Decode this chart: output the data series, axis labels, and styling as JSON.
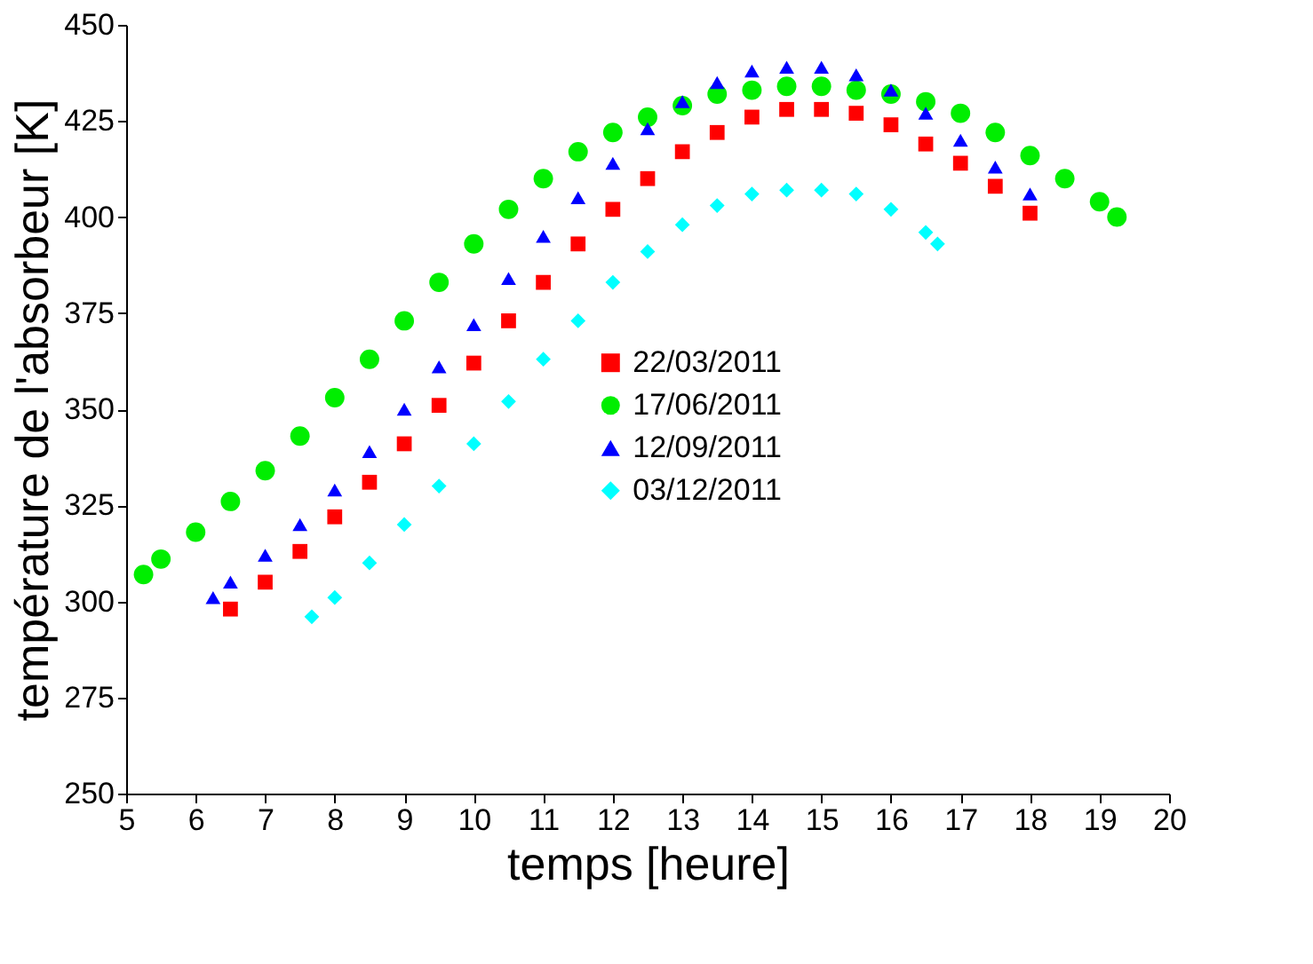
{
  "chart_data": {
    "type": "scatter",
    "xlabel": "temps [heure]",
    "ylabel": "température de l'absorbeur [K]",
    "xlim": [
      5,
      20
    ],
    "ylim": [
      250,
      450
    ],
    "xticks": [
      5,
      6,
      7,
      8,
      9,
      10,
      11,
      12,
      13,
      14,
      15,
      16,
      17,
      18,
      19,
      20
    ],
    "yticks": [
      250,
      275,
      300,
      325,
      350,
      375,
      400,
      425,
      450
    ],
    "grid": false,
    "legend": "right",
    "series": [
      {
        "name": "22/03/2011",
        "color": "#ff0000",
        "marker": "square",
        "x": [
          6.5,
          7,
          7.5,
          8,
          8.5,
          9,
          9.5,
          10,
          10.5,
          11,
          11.5,
          12,
          12.5,
          13,
          13.5,
          14,
          14.5,
          15,
          15.5,
          16,
          16.5,
          17,
          17.5,
          18
        ],
        "values": [
          298,
          305,
          313,
          322,
          331,
          341,
          351,
          362,
          373,
          383,
          393,
          402,
          410,
          417,
          422,
          426,
          428,
          428,
          427,
          424,
          419,
          414,
          408,
          401
        ]
      },
      {
        "name": "17/06/2011",
        "color": "#00ee00",
        "marker": "circle",
        "x": [
          5.25,
          5.5,
          6,
          6.5,
          7,
          7.5,
          8,
          8.5,
          9,
          9.5,
          10,
          10.5,
          11,
          11.5,
          12,
          12.5,
          13,
          13.5,
          14,
          14.5,
          15,
          15.5,
          16,
          16.5,
          17,
          17.5,
          18,
          18.5,
          19,
          19.25
        ],
        "values": [
          307,
          311,
          318,
          326,
          334,
          343,
          353,
          363,
          373,
          383,
          393,
          402,
          410,
          417,
          422,
          426,
          429,
          432,
          433,
          434,
          434,
          433,
          432,
          430,
          427,
          422,
          416,
          410,
          404,
          400
        ]
      },
      {
        "name": "12/09/2011",
        "color": "#0000ff",
        "marker": "triangle",
        "x": [
          6.25,
          6.5,
          7,
          7.5,
          8,
          8.5,
          9,
          9.5,
          10,
          10.5,
          11,
          11.5,
          12,
          12.5,
          13,
          13.5,
          14,
          14.5,
          15,
          15.5,
          16,
          16.5,
          17,
          17.5,
          18
        ],
        "values": [
          301,
          305,
          312,
          320,
          329,
          339,
          350,
          361,
          372,
          384,
          395,
          405,
          414,
          423,
          430,
          435,
          438,
          439,
          439,
          437,
          433,
          427,
          420,
          413,
          406
        ]
      },
      {
        "name": "03/12/2011",
        "color": "#00ffff",
        "marker": "diamond",
        "x": [
          7.67,
          8,
          8.5,
          9,
          9.5,
          10,
          10.5,
          11,
          11.5,
          12,
          12.5,
          13,
          13.5,
          14,
          14.5,
          15,
          15.5,
          16,
          16.5,
          16.67
        ],
        "values": [
          296,
          301,
          310,
          320,
          330,
          341,
          352,
          363,
          373,
          383,
          391,
          398,
          403,
          406,
          407,
          407,
          406,
          402,
          396,
          393
        ]
      }
    ]
  }
}
